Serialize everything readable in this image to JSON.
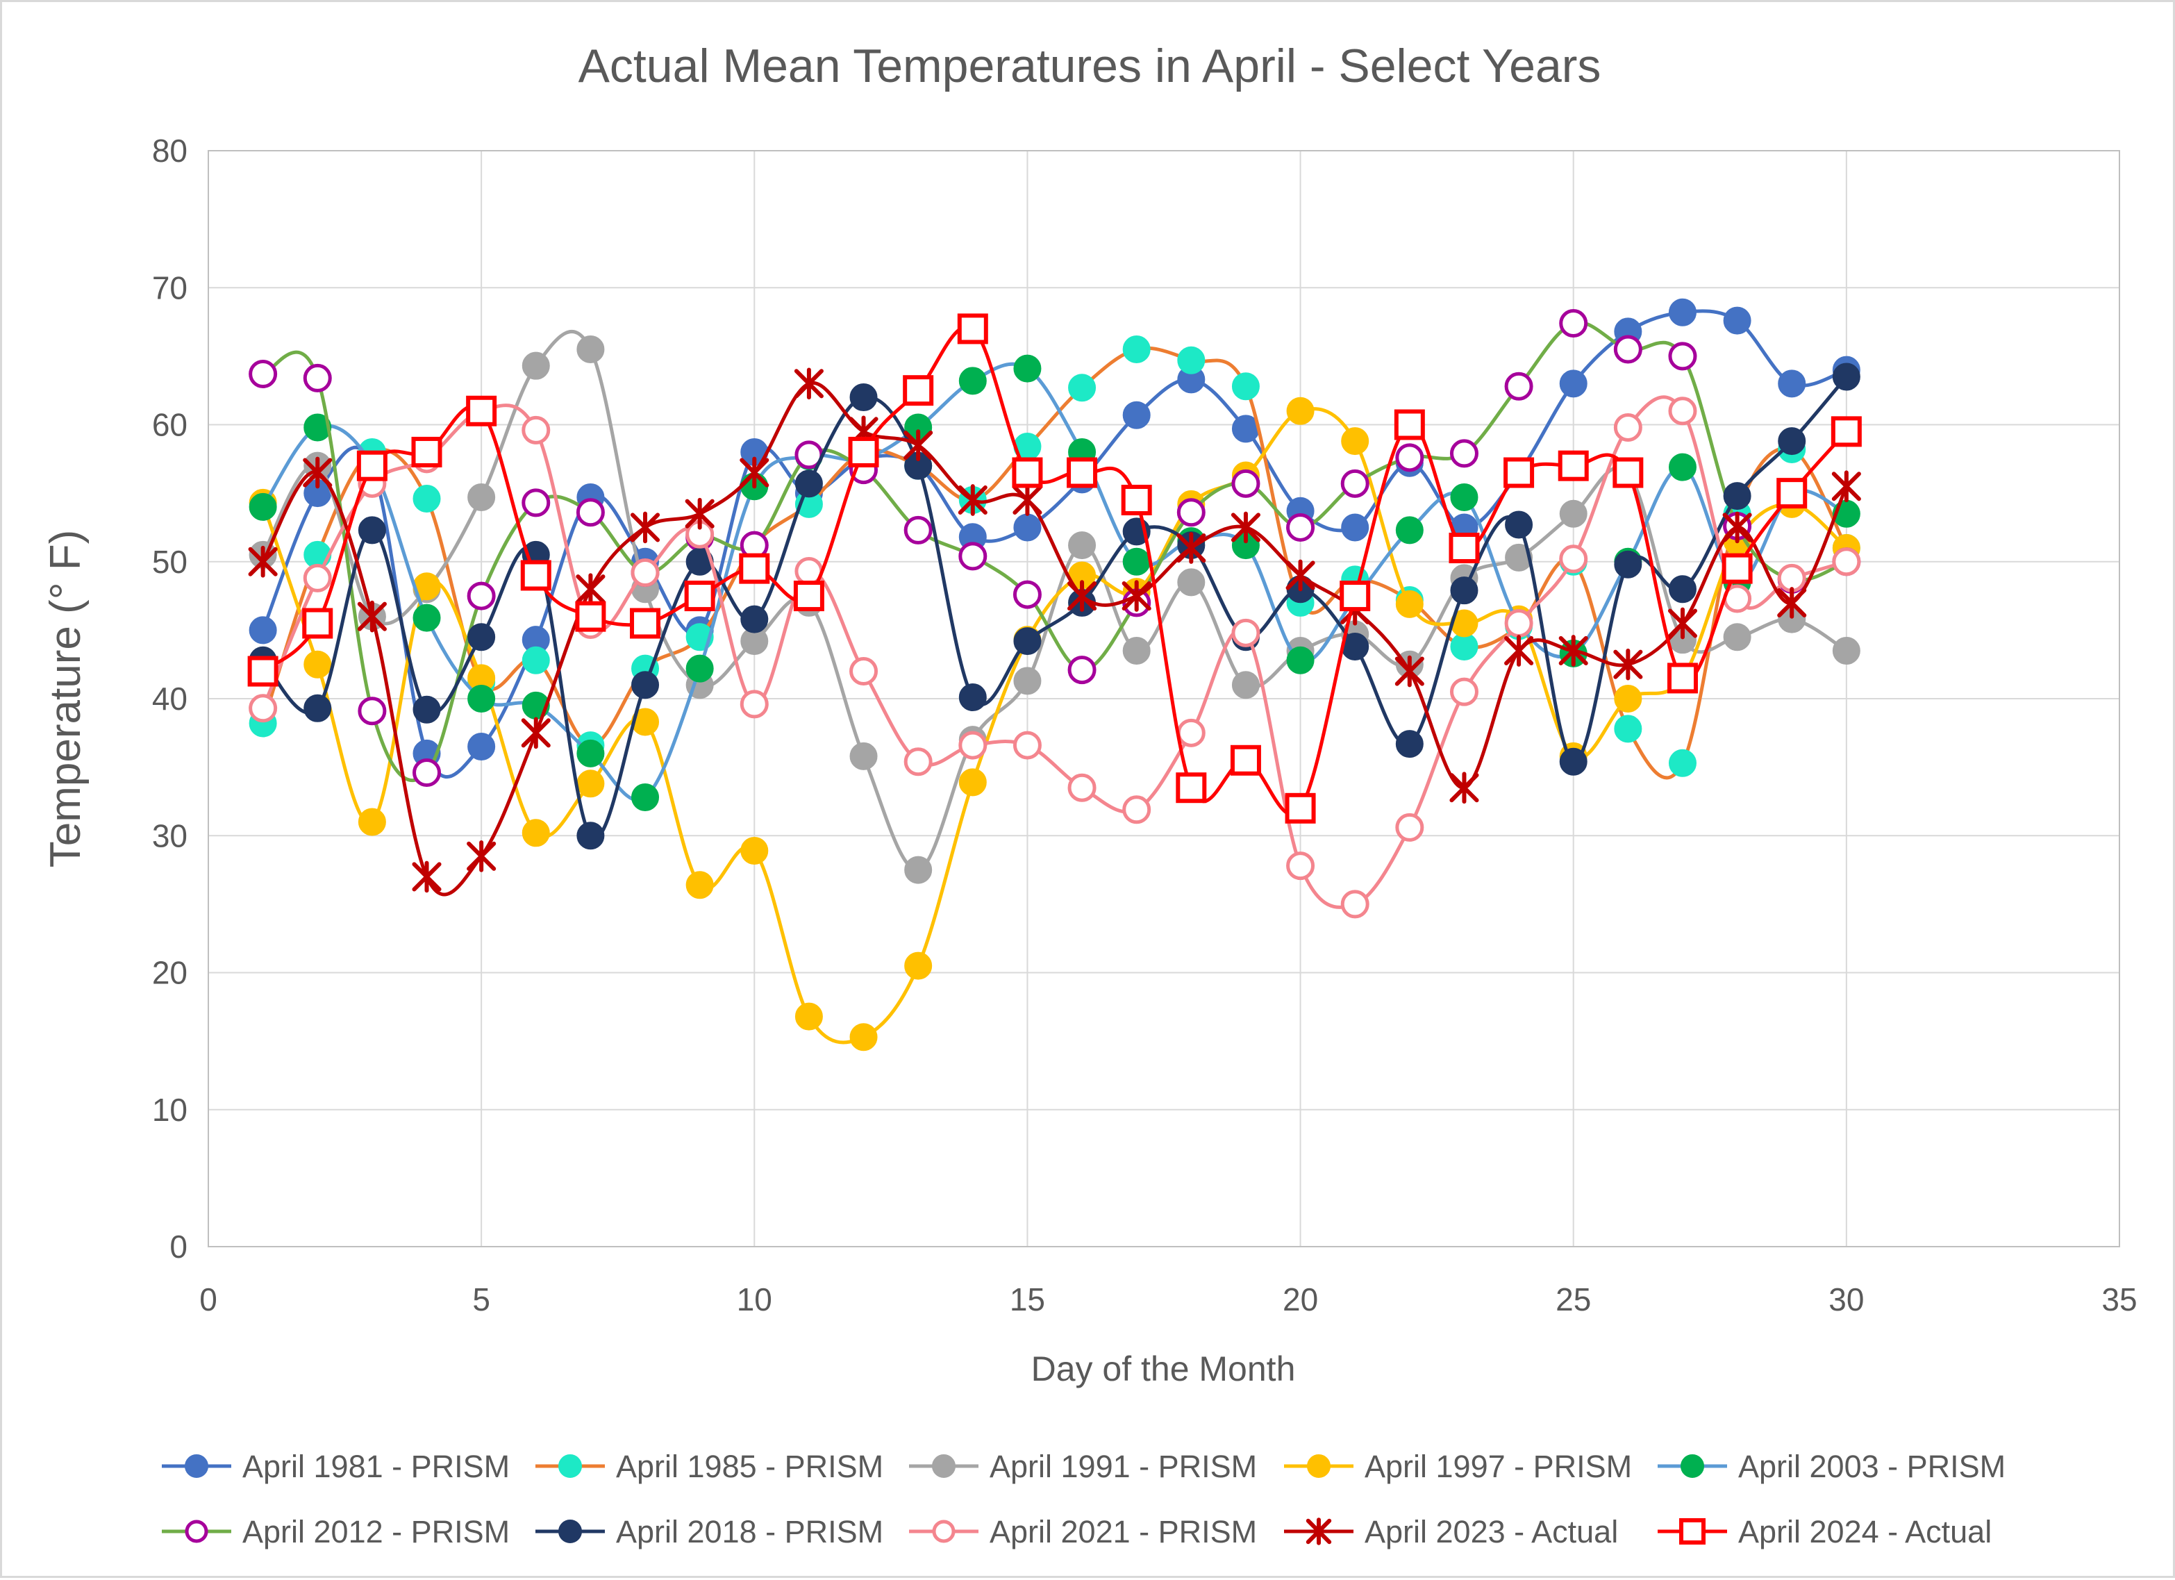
{
  "chart_data": {
    "type": "line",
    "title": "Actual Mean Temperatures in April - Select Years",
    "xlabel": "Day of the Month",
    "ylabel": "Temperature (° F)",
    "xlim": [
      0,
      35
    ],
    "ylim": [
      0,
      80
    ],
    "xticks": [
      0,
      5,
      10,
      15,
      20,
      25,
      30,
      35
    ],
    "yticks": [
      0,
      10,
      20,
      30,
      40,
      50,
      60,
      70,
      80
    ],
    "grid": true,
    "legend_position": "bottom",
    "x": [
      1,
      2,
      3,
      4,
      5,
      6,
      7,
      8,
      9,
      10,
      11,
      12,
      13,
      14,
      15,
      16,
      17,
      18,
      19,
      20,
      21,
      22,
      23,
      24,
      25,
      26,
      27,
      28,
      29,
      30
    ],
    "series": [
      {
        "name": "April 1981 - PRISM",
        "color": "#4472C4",
        "marker": "circle-filled",
        "values": [
          45,
          55,
          57,
          36,
          36.5,
          44.3,
          54.7,
          50,
          45,
          58,
          55,
          57.5,
          57,
          51.8,
          52.5,
          56,
          60.7,
          63.3,
          59.7,
          53.7,
          52.5,
          57.2,
          52.5,
          56.5,
          63,
          66.8,
          68.2,
          67.6,
          63,
          64
        ]
      },
      {
        "name": "April 1985 - PRISM",
        "color": "#1DE9C6",
        "line_color": "#ED7D31",
        "marker": "circle-filled",
        "values": [
          38.2,
          50.5,
          58,
          54.6,
          41.2,
          42.8,
          36.6,
          42.2,
          44.5,
          51.2,
          54.2,
          58,
          57,
          54.5,
          58.4,
          62.7,
          65.5,
          64.7,
          62.8,
          47,
          48.7,
          47.2,
          43.8,
          45.3,
          50,
          37.8,
          35.3,
          53.5,
          58.2,
          51
        ]
      },
      {
        "name": "April 1991 - PRISM",
        "color": "#A5A5A5",
        "marker": "circle-filled",
        "values": [
          50.5,
          57,
          46,
          48,
          54.7,
          64.3,
          65.5,
          48,
          41,
          44.2,
          47,
          35.8,
          27.5,
          37,
          41.3,
          51.2,
          43.5,
          48.5,
          41,
          43.5,
          44.7,
          42.5,
          48.8,
          50.3,
          53.5,
          56.5,
          44.3,
          44.5,
          45.8,
          43.5
        ]
      },
      {
        "name": "April 1997 - PRISM",
        "color": "#FFC000",
        "marker": "circle-filled",
        "values": [
          54.3,
          42.5,
          31,
          48.2,
          41.5,
          30.2,
          33.8,
          38.3,
          26.4,
          28.9,
          16.8,
          15.3,
          20.5,
          33.9,
          44.3,
          49,
          47.8,
          54.2,
          56.3,
          61,
          58.8,
          46.9,
          45.5,
          45.8,
          35.8,
          40,
          41.5,
          51.5,
          54.2,
          51
        ]
      },
      {
        "name": "April 2003 - PRISM",
        "color": "#00B050",
        "line_color": "#5B9BD5",
        "marker": "circle-filled",
        "values": [
          54,
          59.8,
          57,
          45.9,
          40,
          39.5,
          36,
          32.8,
          42.2,
          55.5,
          57.7,
          57.5,
          59.8,
          63.2,
          64.1,
          58,
          50,
          51.5,
          51.2,
          42.8,
          47.3,
          52.3,
          54.7,
          45.5,
          43.3,
          50,
          56.9,
          48.5,
          55,
          53.5
        ]
      },
      {
        "name": "April 2012 - PRISM",
        "color": "#A6009B",
        "line_color": "#70AD47",
        "marker": "circle-open",
        "values": [
          63.7,
          63.4,
          39.1,
          34.6,
          47.5,
          54.3,
          53.6,
          49.2,
          51.8,
          51.2,
          57.8,
          56.7,
          52.3,
          50.4,
          47.6,
          42.1,
          47,
          53.6,
          55.7,
          52.5,
          55.7,
          57.6,
          57.9,
          62.8,
          67.4,
          65.5,
          65,
          52.6,
          48.7,
          50
        ]
      },
      {
        "name": "April 2018 - PRISM",
        "color": "#203864",
        "marker": "circle-filled",
        "values": [
          42.8,
          39.3,
          52.3,
          39.2,
          44.5,
          50.5,
          30,
          41,
          50,
          45.8,
          55.7,
          62,
          57,
          40.1,
          44.2,
          47,
          52.2,
          51.2,
          44.5,
          48,
          43.8,
          36.7,
          47.9,
          52.7,
          35.4,
          49.8,
          48,
          54.8,
          58.8,
          63.5
        ]
      },
      {
        "name": "April 2021 - PRISM",
        "color": "#F4858E",
        "marker": "circle-open",
        "values": [
          39.3,
          48.8,
          55.7,
          57.5,
          61,
          59.6,
          45.4,
          49.2,
          52,
          39.6,
          49.3,
          42,
          35.4,
          36.6,
          36.6,
          33.5,
          31.9,
          37.5,
          44.8,
          27.8,
          25,
          30.6,
          40.5,
          45.5,
          50.2,
          59.8,
          61,
          47.3,
          48.8,
          50
        ]
      },
      {
        "name": "April 2023 - Actual",
        "color": "#C00000",
        "marker": "star",
        "values": [
          50,
          56.5,
          46,
          27,
          28.5,
          37.5,
          48,
          52.5,
          53.5,
          56.5,
          63,
          59.5,
          58.5,
          54.5,
          54.5,
          47.5,
          47.5,
          51,
          52.5,
          49,
          46.5,
          42,
          33.5,
          43.5,
          43.5,
          42.5,
          45.5,
          52.5,
          47,
          55.5
        ]
      },
      {
        "name": "April 2024 - Actual",
        "color": "#FF0000",
        "marker": "square-open",
        "values": [
          42,
          45.5,
          57,
          58,
          61,
          49,
          46,
          45.5,
          47.5,
          49.5,
          47.5,
          58,
          62.5,
          67,
          56.5,
          56.5,
          54.5,
          33.5,
          35.5,
          32,
          47.5,
          60,
          51,
          56.5,
          57,
          56.5,
          41.5,
          49.5,
          55,
          59.5
        ]
      }
    ]
  }
}
